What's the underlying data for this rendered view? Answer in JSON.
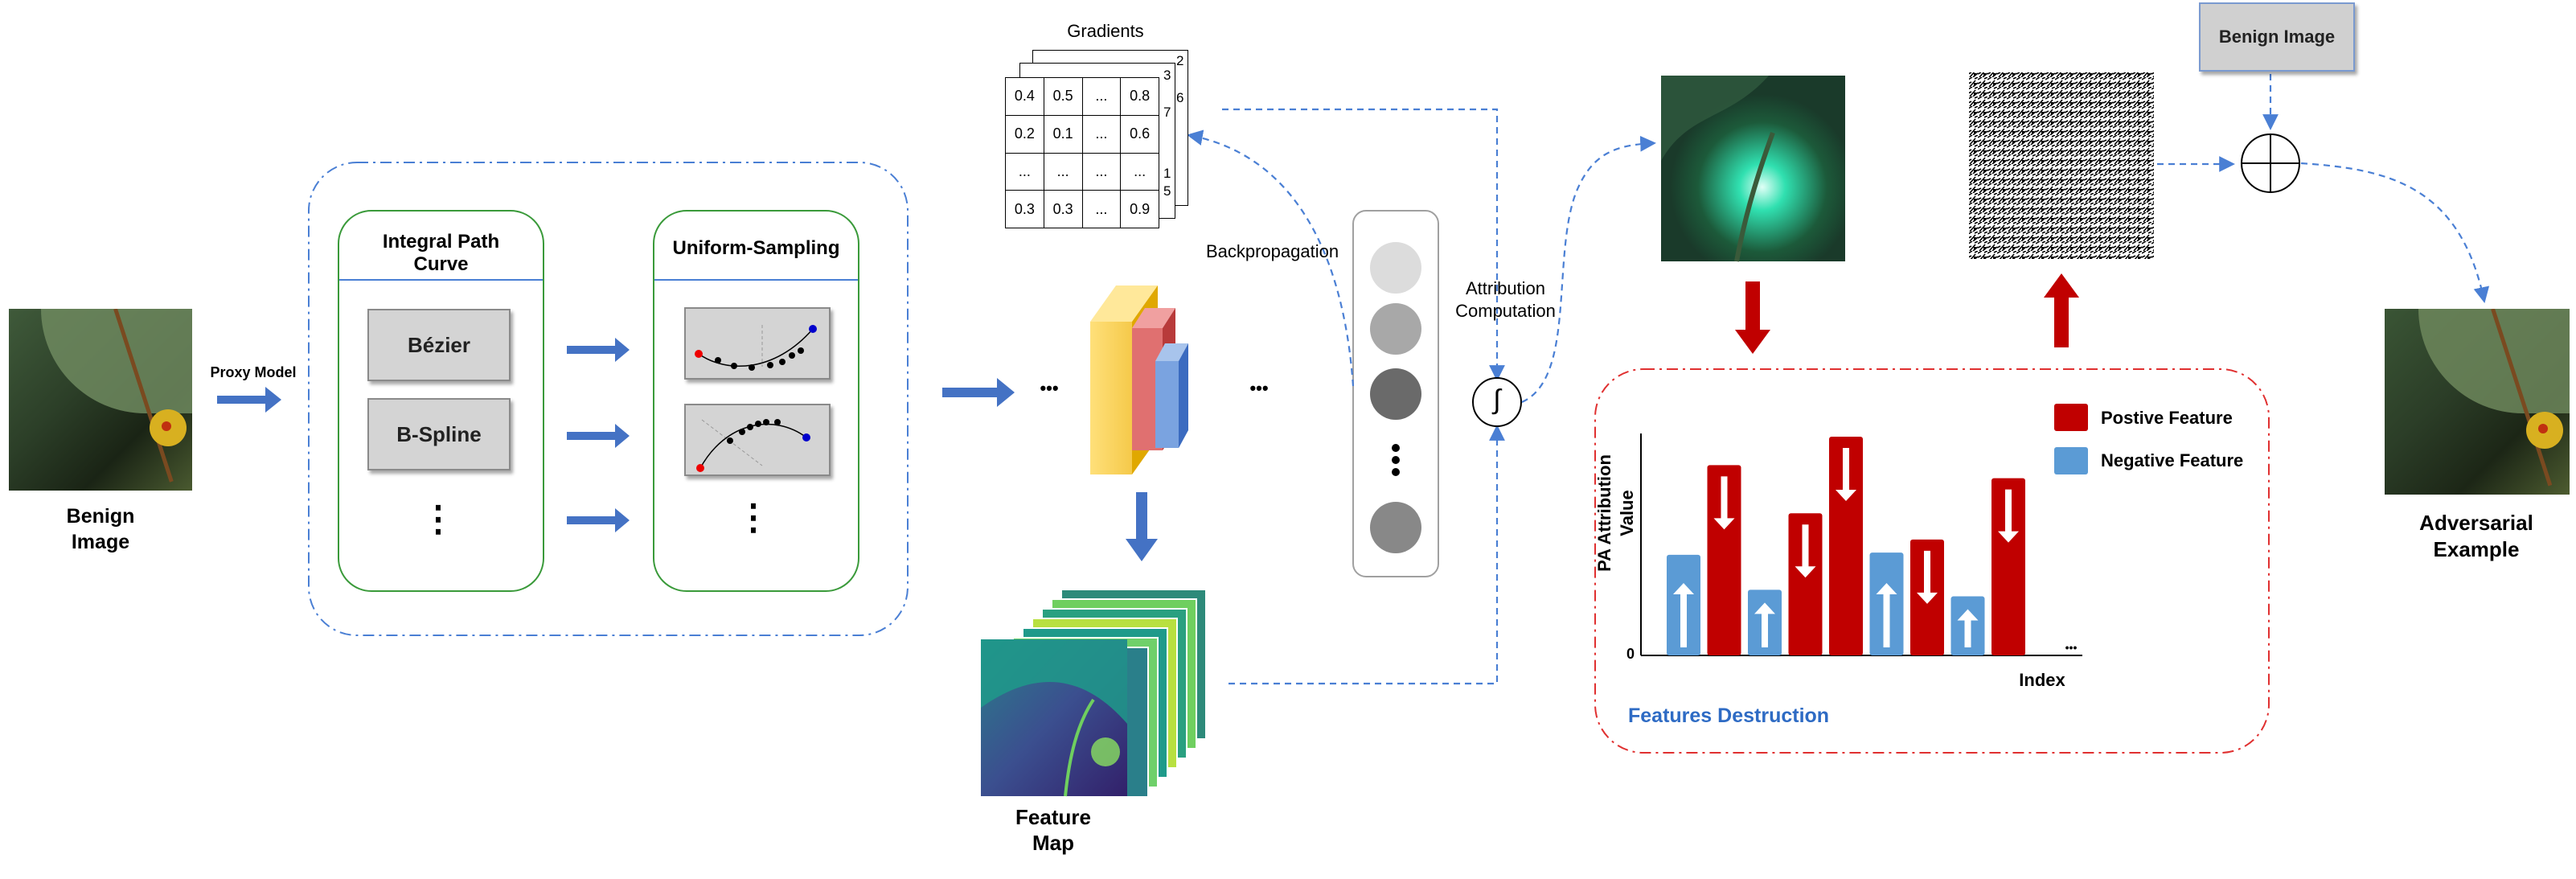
{
  "labels": {
    "benign_image": "Benign\nImage",
    "proxy_model": "Proxy Model",
    "integral_path_title": "Integral Path\nCurve",
    "uniform_sampling_title": "Uniform-Sampling",
    "bezier": "Bézier",
    "bspline": "B-Spline",
    "gradients": "Gradients",
    "backpropagation": "Backpropagation",
    "attribution_computation": "Attribution\nComputation",
    "feature_map": "Feature\nMap",
    "benign_image_box": "Benign Image",
    "adversarial_example": "Adversarial\nExample",
    "features_destruction": "Features Destruction",
    "legend_positive": "Postive Feature",
    "legend_negative": "Negative Feature",
    "y_axis_label": "PA  Attribution\nValue",
    "x_axis_label": "Index",
    "y_zero": "0",
    "integral_symbol": "∫",
    "dots_h": "•••",
    "dots_v": "⋮"
  },
  "gradient_matrix": {
    "rows": [
      [
        "0.4",
        "0.5",
        "...",
        "0.8"
      ],
      [
        "0.2",
        "0.1",
        "...",
        "0.6"
      ],
      [
        "...",
        "...",
        "...",
        "..."
      ],
      [
        "0.3",
        "0.3",
        "...",
        "0.9"
      ]
    ],
    "back_layer_digits": [
      "2",
      "3",
      "6",
      "7",
      "1",
      "5"
    ]
  },
  "chart_data": {
    "type": "bar",
    "xlabel": "Index",
    "ylabel": "PA  Attribution Value",
    "series": [
      {
        "name": "Postive Feature",
        "color": "#c00000",
        "indices": [
          2,
          4,
          5,
          7,
          9
        ]
      },
      {
        "name": "Negative Feature",
        "color": "#5b9bd5",
        "indices": [
          1,
          3,
          6,
          8
        ]
      }
    ],
    "values": [
      0.46,
      0.87,
      0.3,
      0.65,
      1.0,
      0.47,
      0.53,
      0.27,
      0.81
    ],
    "types": [
      "neg",
      "pos",
      "neg",
      "pos",
      "pos",
      "neg",
      "pos",
      "neg",
      "pos"
    ]
  },
  "colors": {
    "positive": "#c00000",
    "negative": "#5b9bd5",
    "arrow_blue": "#4472c4",
    "green_border": "#3a9a3a",
    "dash_blue": "#4a7fd4",
    "dash_red": "#e03030"
  }
}
